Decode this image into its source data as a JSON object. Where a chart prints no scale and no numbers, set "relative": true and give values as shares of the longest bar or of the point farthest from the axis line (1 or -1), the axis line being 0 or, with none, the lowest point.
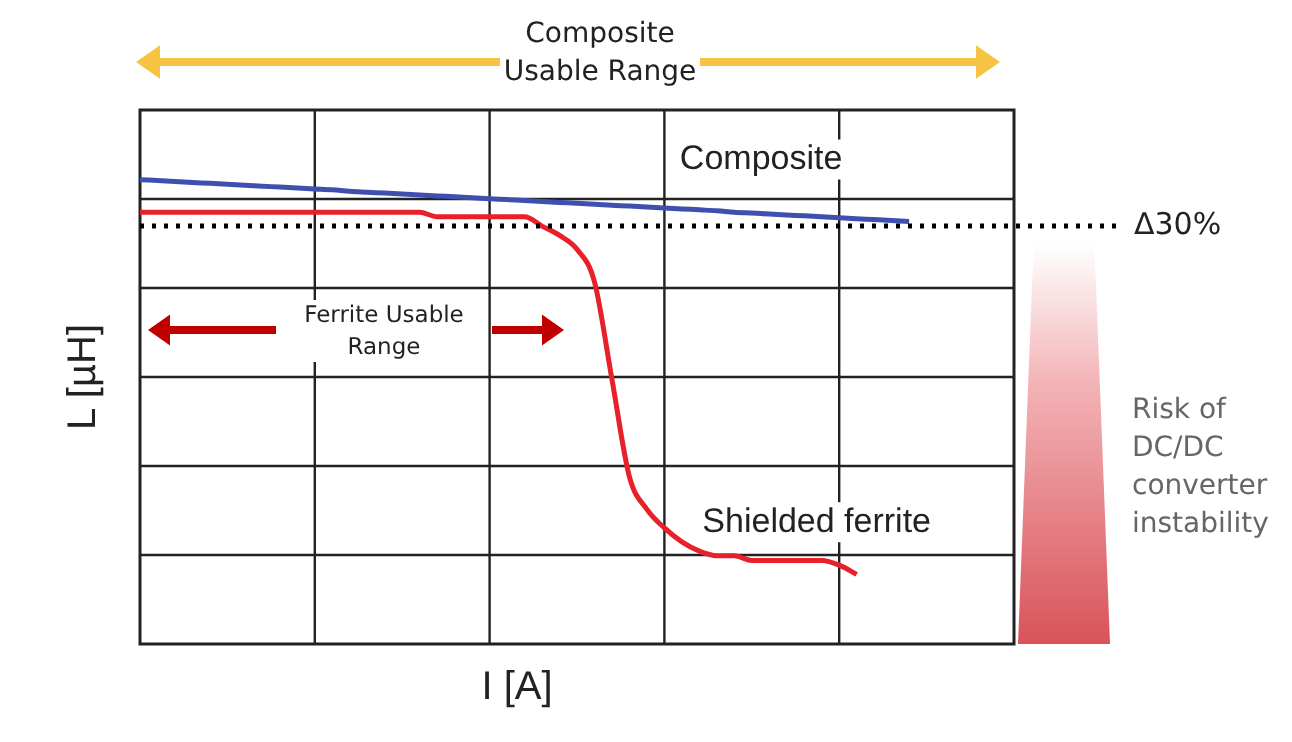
{
  "chart_data": {
    "type": "line",
    "relative": true,
    "xlabel": "I [A]",
    "ylabel": "L [µH]",
    "categories": [
      null,
      null,
      null,
      null,
      null,
      null,
      null,
      null,
      null,
      null,
      null,
      null,
      null,
      null,
      null,
      null,
      null,
      null,
      null,
      null,
      null,
      null,
      null,
      null,
      null,
      null,
      null,
      null,
      null,
      null,
      null,
      null,
      null,
      null,
      null,
      null,
      null,
      null,
      null,
      null,
      null,
      null,
      null,
      null,
      null,
      null,
      null,
      null,
      null,
      null,
      null
    ],
    "series": [
      {
        "name": "Composite",
        "color": "#3f4fb0",
        "values": [
          1.0,
          0.998,
          0.996,
          0.994,
          0.992,
          0.99,
          0.988,
          0.986,
          0.984,
          0.982,
          0.98,
          0.978,
          0.975,
          0.973,
          0.971,
          0.969,
          0.967,
          0.965,
          0.963,
          0.961,
          0.959,
          0.957,
          0.955,
          0.953,
          0.951,
          0.949,
          0.947,
          0.945,
          0.943,
          0.941,
          0.939,
          0.937,
          0.935,
          0.933,
          0.93,
          0.928,
          0.926,
          0.924,
          0.922,
          0.92,
          0.918,
          0.916,
          0.914,
          0.912,
          0.91,
          null,
          null,
          null,
          null,
          null,
          null
        ]
      },
      {
        "name": "Shielded ferrite",
        "color": "#e8202a",
        "values": [
          0.93,
          0.93,
          0.93,
          0.93,
          0.93,
          0.93,
          0.93,
          0.93,
          0.93,
          0.93,
          0.93,
          0.93,
          0.93,
          0.93,
          0.93,
          0.93,
          0.93,
          0.92,
          0.92,
          0.92,
          0.92,
          0.92,
          0.92,
          0.9,
          0.88,
          0.85,
          0.78,
          0.57,
          0.36,
          0.29,
          0.25,
          0.22,
          0.2,
          0.19,
          0.19,
          0.18,
          0.18,
          0.18,
          0.18,
          0.18,
          0.17,
          0.15,
          null,
          null,
          null,
          null,
          null,
          null,
          null,
          null,
          null
        ]
      }
    ],
    "ref_lines": [
      {
        "axis": "y",
        "value": 0.9,
        "label": "Δ30%",
        "color": "#000000",
        "line_style": "dotted"
      }
    ],
    "annotations": [
      "Composite Usable Range",
      "Ferrite Usable Range",
      "Risk of DC/DC converter instability"
    ],
    "grid": true,
    "legend": false,
    "marker": "none",
    "line_style": "solid"
  }
}
